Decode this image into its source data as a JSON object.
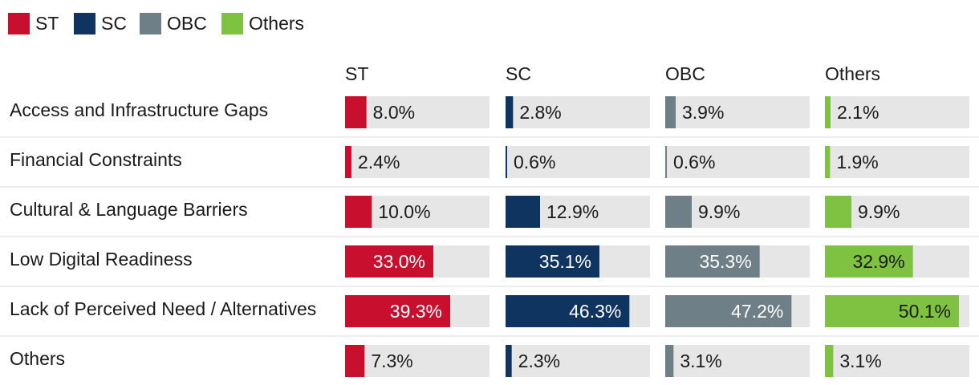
{
  "chart_data": {
    "type": "bar",
    "legend": [
      "ST",
      "SC",
      "OBC",
      "Others"
    ],
    "legend_position": "top-left",
    "categories": [
      "Access and Infrastructure Gaps",
      "Financial Constraints",
      "Cultural & Language Barriers",
      "Low Digital Readiness",
      "Lack of Perceived Need / Alternatives",
      "Others"
    ],
    "series": [
      {
        "name": "ST",
        "color": "#c8102e",
        "values": [
          8.0,
          2.4,
          10.0,
          33.0,
          39.3,
          7.3
        ],
        "labels": [
          "8.0%",
          "2.4%",
          "10.0%",
          "33.0%",
          "39.3%",
          "7.3%"
        ]
      },
      {
        "name": "SC",
        "color": "#0f3460",
        "values": [
          2.8,
          0.6,
          12.9,
          35.1,
          46.3,
          2.3
        ],
        "labels": [
          "2.8%",
          "0.6%",
          "12.9%",
          "35.1%",
          "46.3%",
          "2.3%"
        ]
      },
      {
        "name": "OBC",
        "color": "#6e7f88",
        "values": [
          3.9,
          0.6,
          9.9,
          35.3,
          47.2,
          3.1
        ],
        "labels": [
          "3.9%",
          "0.6%",
          "9.9%",
          "35.3%",
          "47.2%",
          "3.1%"
        ]
      },
      {
        "name": "Others",
        "color": "#7fc241",
        "values": [
          2.1,
          1.9,
          9.9,
          32.9,
          50.1,
          3.1
        ],
        "labels": [
          "2.1%",
          "1.9%",
          "9.9%",
          "32.9%",
          "50.1%",
          "3.1%"
        ]
      }
    ],
    "xlim": [
      0,
      54
    ],
    "track_color": "#e6e6e6",
    "grid": false
  }
}
